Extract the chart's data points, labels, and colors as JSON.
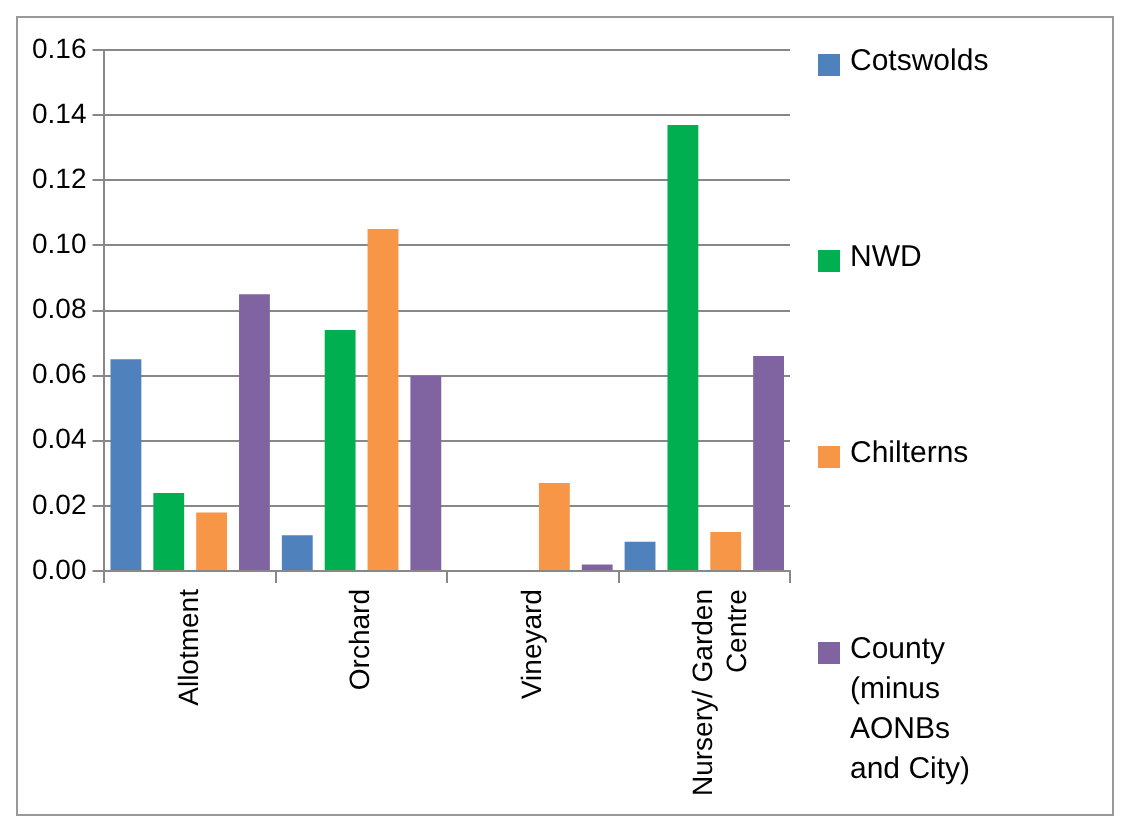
{
  "chart_data": {
    "type": "bar",
    "categories": [
      "Allotment",
      "Orchard",
      "Vineyard",
      "Nursery/ Garden Centre"
    ],
    "series": [
      {
        "name": "Cotswolds",
        "color": "#4f81bd",
        "values": [
          0.065,
          0.011,
          0,
          0.009
        ]
      },
      {
        "name": "NWD",
        "color": "#00b050",
        "values": [
          0.024,
          0.074,
          0,
          0.137
        ]
      },
      {
        "name": "Chilterns",
        "color": "#f79646",
        "values": [
          0.018,
          0.105,
          0.027,
          0.012
        ]
      },
      {
        "name": "County (minus AONBs and City)",
        "color": "#8064a2",
        "values": [
          0.085,
          0.06,
          0.002,
          0.066
        ]
      }
    ],
    "ylim": [
      0,
      0.16
    ],
    "yticks": [
      {
        "value": 0,
        "label": "0.00"
      },
      0.02,
      0.04,
      0.06,
      0.08,
      {
        "value": 0.1,
        "label": "0.10"
      },
      0.12,
      0.14,
      0.16
    ],
    "grid": "y",
    "legend": "right"
  }
}
